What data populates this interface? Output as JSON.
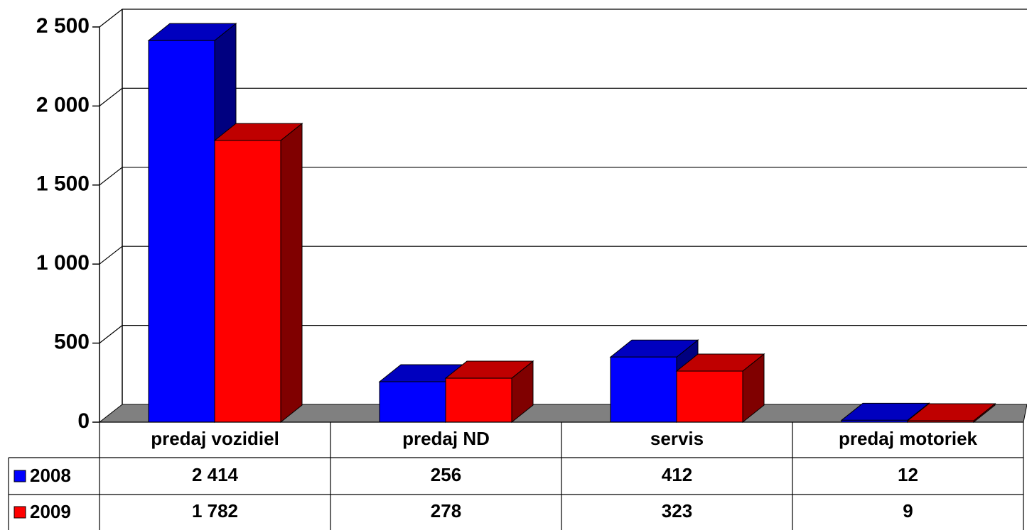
{
  "chart_data": {
    "type": "bar3d",
    "categories": [
      "predaj vozidiel",
      "predaj ND",
      "servis",
      "predaj motoriek"
    ],
    "series": [
      {
        "name": "2008",
        "color": "#0000ff",
        "values": [
          2414,
          256,
          412,
          12
        ],
        "value_labels": [
          "2 414",
          "256",
          "412",
          "12"
        ]
      },
      {
        "name": "2009",
        "color": "#ff0000",
        "values": [
          1782,
          278,
          323,
          9
        ],
        "value_labels": [
          "1 782",
          "278",
          "323",
          "9"
        ]
      }
    ],
    "ylim": [
      0,
      2500
    ],
    "yticks": [
      0,
      500,
      {
        "value": 1000,
        "label": "1 000"
      },
      {
        "value": 1500,
        "label": "1 500"
      },
      {
        "value": 2000,
        "label": "2 000"
      },
      {
        "value": 2500,
        "label": "2 500"
      }
    ],
    "grid": true
  }
}
